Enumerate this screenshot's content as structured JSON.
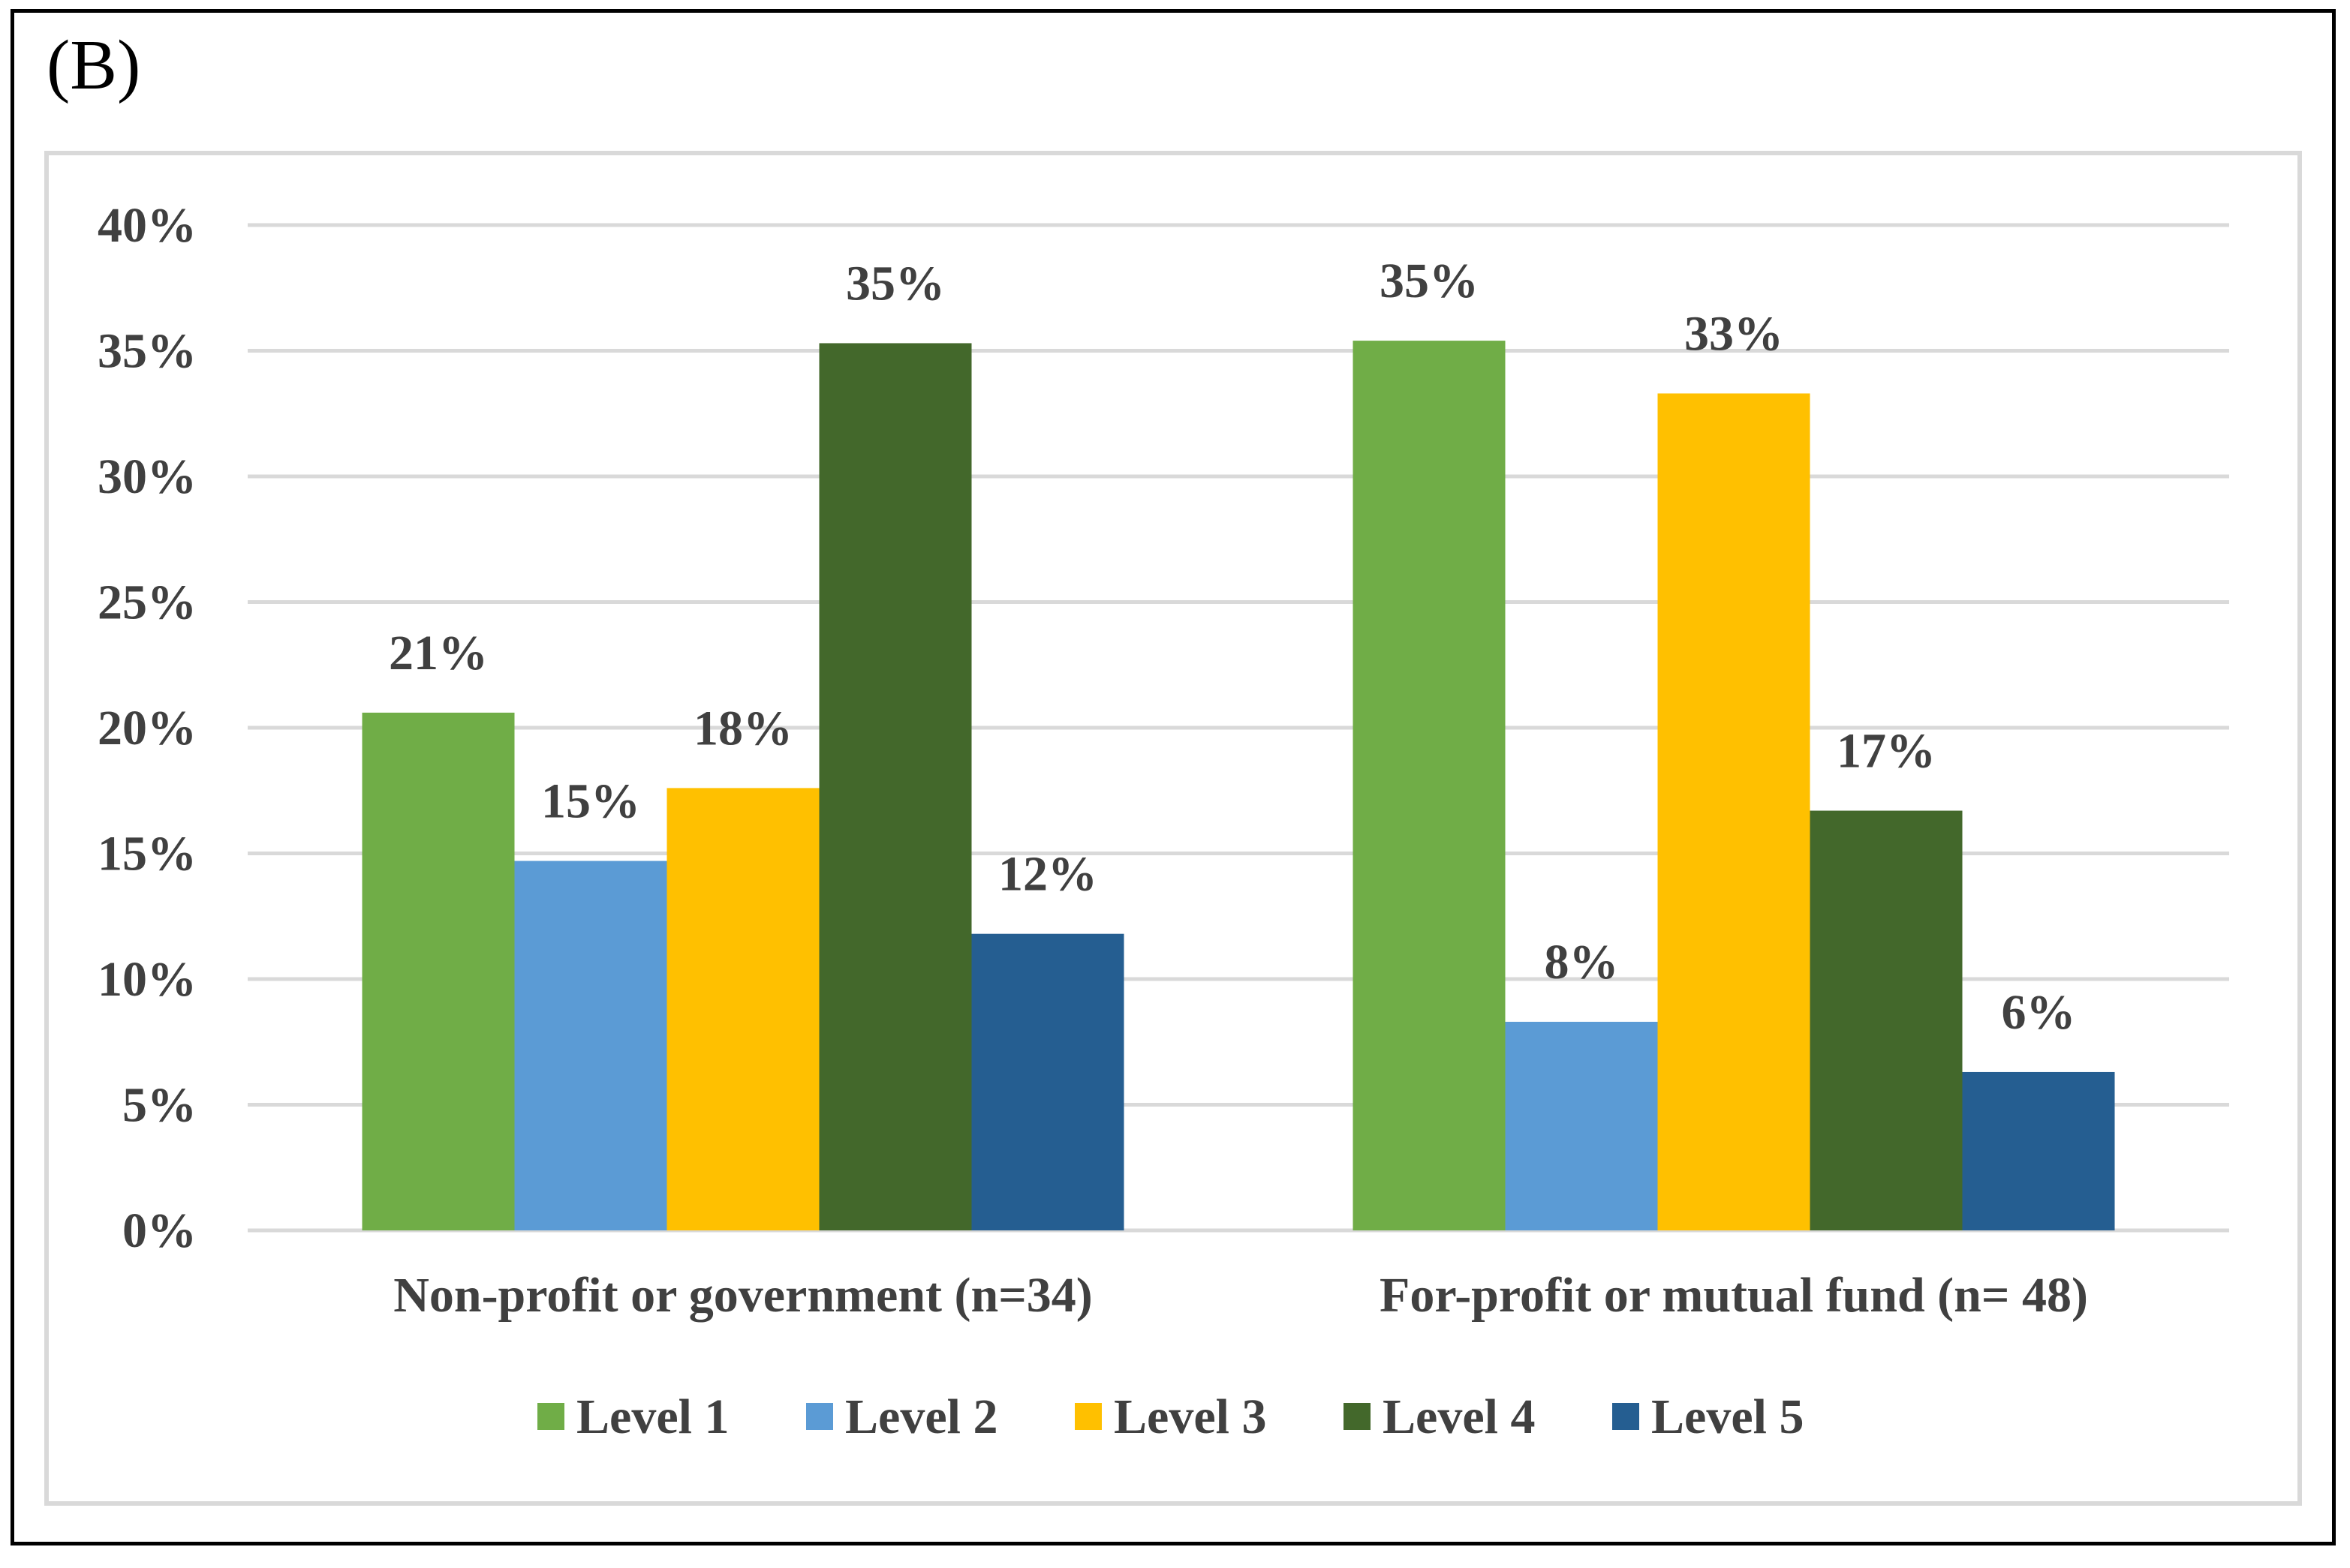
{
  "panel_label": "(B)",
  "chart_data": {
    "type": "bar",
    "title": "",
    "xlabel": "",
    "ylabel": "",
    "ylim": [
      0,
      40
    ],
    "yticks": [
      0,
      5,
      10,
      15,
      20,
      25,
      30,
      35,
      40
    ],
    "ytick_labels": [
      "0%",
      "5%",
      "10%",
      "15%",
      "20%",
      "25%",
      "30%",
      "35%",
      "40%"
    ],
    "grid": true,
    "legend_position": "bottom",
    "categories": [
      "Non-profit or government (n=34)",
      "For-profit or mutual fund (n= 48)"
    ],
    "series": [
      {
        "name": "Level 1",
        "color": "#70AD47",
        "values": [
          20.6,
          35.4
        ],
        "labels": [
          "21%",
          "35%"
        ]
      },
      {
        "name": "Level 2",
        "color": "#5B9BD5",
        "values": [
          14.7,
          8.3
        ],
        "labels": [
          "15%",
          "8%"
        ]
      },
      {
        "name": "Level 3",
        "color": "#FFC000",
        "values": [
          17.6,
          33.3
        ],
        "labels": [
          "18%",
          "33%"
        ]
      },
      {
        "name": "Level 4",
        "color": "#43682B",
        "values": [
          35.3,
          16.7
        ],
        "labels": [
          "35%",
          "17%"
        ]
      },
      {
        "name": "Level 5",
        "color": "#255E91",
        "values": [
          11.8,
          6.3
        ],
        "labels": [
          "12%",
          "6%"
        ]
      }
    ]
  }
}
